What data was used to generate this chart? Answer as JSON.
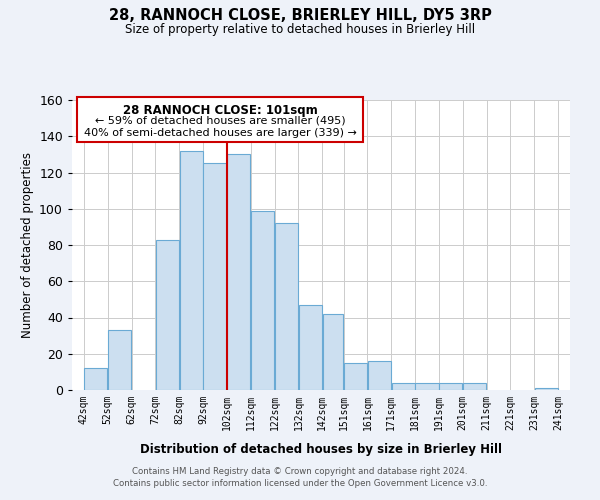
{
  "title": "28, RANNOCH CLOSE, BRIERLEY HILL, DY5 3RP",
  "subtitle": "Size of property relative to detached houses in Brierley Hill",
  "xlabel": "Distribution of detached houses by size in Brierley Hill",
  "ylabel": "Number of detached properties",
  "bar_color": "#ccdff0",
  "bar_edge_color": "#6aaad4",
  "bar_left_edges": [
    42,
    52,
    62,
    72,
    82,
    92,
    102,
    112,
    122,
    132,
    142,
    151,
    161,
    171,
    181,
    191,
    201,
    211,
    221,
    231
  ],
  "bar_widths": [
    10,
    10,
    10,
    10,
    10,
    10,
    10,
    10,
    10,
    10,
    9,
    10,
    10,
    10,
    10,
    10,
    10,
    10,
    10,
    10
  ],
  "bar_heights": [
    12,
    33,
    0,
    83,
    132,
    125,
    130,
    99,
    92,
    47,
    42,
    15,
    16,
    4,
    4,
    4,
    4,
    0,
    0,
    1
  ],
  "tick_labels": [
    "42sqm",
    "52sqm",
    "62sqm",
    "72sqm",
    "82sqm",
    "92sqm",
    "102sqm",
    "112sqm",
    "122sqm",
    "132sqm",
    "142sqm",
    "151sqm",
    "161sqm",
    "171sqm",
    "181sqm",
    "191sqm",
    "201sqm",
    "211sqm",
    "221sqm",
    "231sqm",
    "241sqm"
  ],
  "tick_positions": [
    42,
    52,
    62,
    72,
    82,
    92,
    102,
    112,
    122,
    132,
    142,
    151,
    161,
    171,
    181,
    191,
    201,
    211,
    221,
    231,
    241
  ],
  "vline_x": 102,
  "vline_color": "#cc0000",
  "ylim": [
    0,
    160
  ],
  "yticks": [
    0,
    20,
    40,
    60,
    80,
    100,
    120,
    140,
    160
  ],
  "annotation_title": "28 RANNOCH CLOSE: 101sqm",
  "annotation_line1": "← 59% of detached houses are smaller (495)",
  "annotation_line2": "40% of semi-detached houses are larger (339) →",
  "footer_line1": "Contains HM Land Registry data © Crown copyright and database right 2024.",
  "footer_line2": "Contains public sector information licensed under the Open Government Licence v3.0.",
  "background_color": "#eef2f9",
  "plot_bg_color": "#ffffff",
  "grid_color": "#cccccc"
}
